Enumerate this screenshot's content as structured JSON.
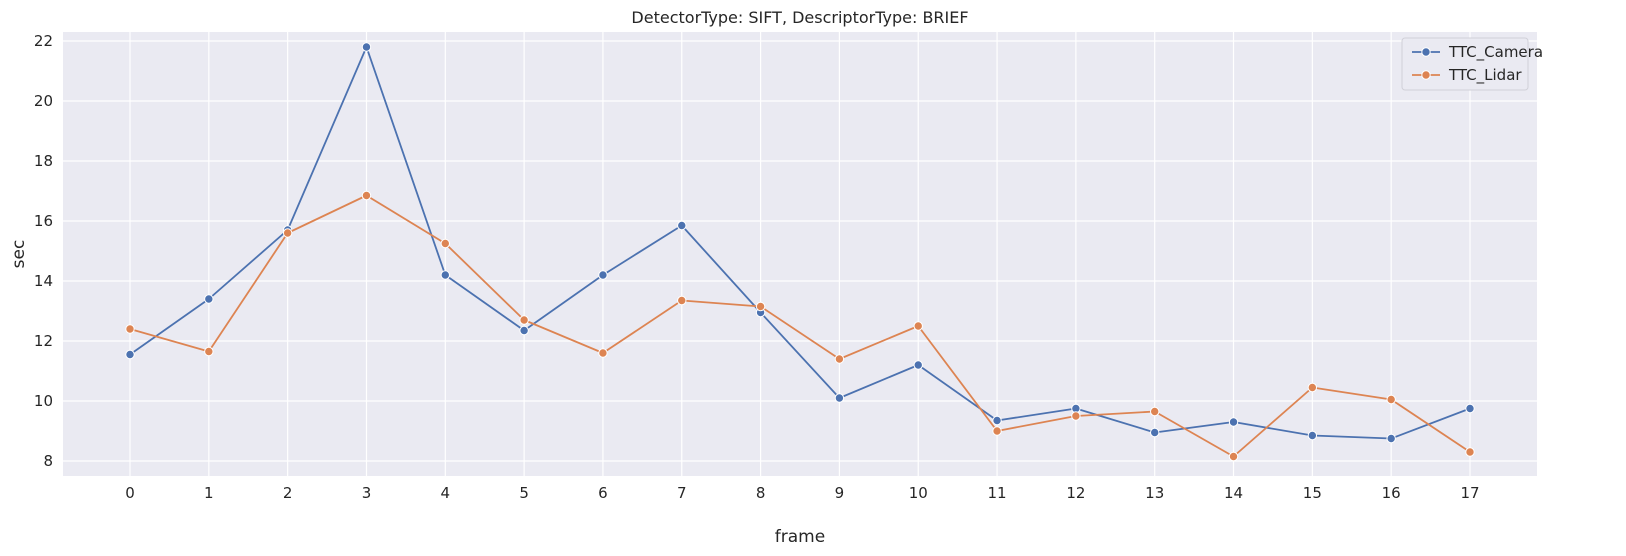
{
  "chart_data": {
    "type": "line",
    "title": "DetectorType: SIFT, DescriptorType: BRIEF",
    "xlabel": "frame",
    "ylabel": "sec",
    "x": [
      0,
      1,
      2,
      3,
      4,
      5,
      6,
      7,
      8,
      9,
      10,
      11,
      12,
      13,
      14,
      15,
      16,
      17
    ],
    "xlim": [
      -0.85,
      17.85
    ],
    "ylim": [
      7.5,
      22.3
    ],
    "yticks": [
      8,
      10,
      12,
      14,
      16,
      18,
      20,
      22
    ],
    "grid": true,
    "legend_position": "top-right",
    "series": [
      {
        "name": "TTC_Camera",
        "color": "#4c72b0",
        "values": [
          11.55,
          13.4,
          15.7,
          21.8,
          14.2,
          12.35,
          14.2,
          15.85,
          12.95,
          10.1,
          11.2,
          9.35,
          9.75,
          8.95,
          9.3,
          8.85,
          8.75,
          9.75
        ]
      },
      {
        "name": "TTC_Lidar",
        "color": "#dd8452",
        "values": [
          12.4,
          11.65,
          15.6,
          16.85,
          15.25,
          12.7,
          11.6,
          13.35,
          13.15,
          11.4,
          12.5,
          9.0,
          9.5,
          9.65,
          8.15,
          10.45,
          10.05,
          8.3
        ]
      }
    ]
  }
}
